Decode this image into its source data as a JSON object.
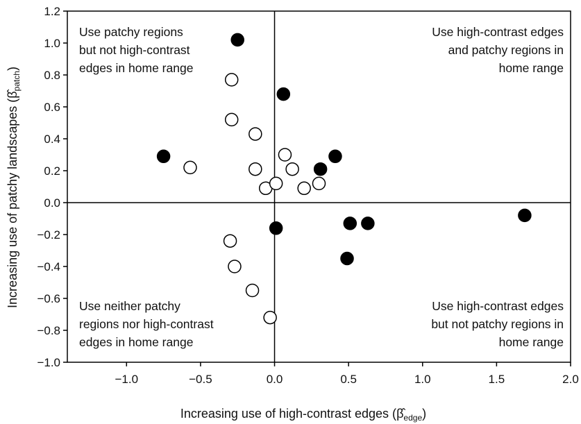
{
  "chart_data": {
    "type": "scatter",
    "xlabel": "Increasing use of high-contrast edges (β̂edge)",
    "xlabel_main": "Increasing use of high-contrast edges (",
    "xlabel_symbol": "β̂",
    "xlabel_sub": "edge",
    "xlabel_close": ")",
    "ylabel": "Increasing use of patchy landscapes (β̂patch)",
    "ylabel_main": "Increasing use of patchy landscapes (",
    "ylabel_symbol": "β̂",
    "ylabel_sub": "patch",
    "ylabel_close": ")",
    "xlim": [
      -1.4,
      2.0
    ],
    "ylim": [
      -1.0,
      1.2
    ],
    "xticks": [
      -1.0,
      -0.5,
      0.0,
      0.5,
      1.0,
      1.5,
      2.0
    ],
    "xtick_labels": [
      "−1.0",
      "−0.5",
      "0.0",
      "0.5",
      "1.0",
      "1.5",
      "2.0"
    ],
    "yticks": [
      -1.0,
      -0.8,
      -0.6,
      -0.4,
      -0.2,
      0.0,
      0.2,
      0.4,
      0.6,
      0.8,
      1.0,
      1.2
    ],
    "ytick_labels": [
      "−1.0",
      "−0.8",
      "−0.6",
      "−0.4",
      "−0.2",
      "0.0",
      "0.2",
      "0.4",
      "0.6",
      "0.8",
      "1.0",
      "1.2"
    ],
    "grid": false,
    "reference_lines": {
      "x": 0.0,
      "y": 0.0
    },
    "series": [
      {
        "marker": "filled-circle",
        "color": "#000000",
        "points": [
          {
            "x": -0.25,
            "y": 1.02
          },
          {
            "x": 0.06,
            "y": 0.68
          },
          {
            "x": -0.75,
            "y": 0.29
          },
          {
            "x": 0.31,
            "y": 0.21
          },
          {
            "x": 0.41,
            "y": 0.29
          },
          {
            "x": 1.69,
            "y": -0.08
          },
          {
            "x": 0.51,
            "y": -0.13
          },
          {
            "x": 0.63,
            "y": -0.13
          },
          {
            "x": 0.01,
            "y": -0.16
          },
          {
            "x": 0.49,
            "y": -0.35
          }
        ]
      },
      {
        "marker": "open-circle",
        "color": "#000000",
        "points": [
          {
            "x": -0.29,
            "y": 0.77
          },
          {
            "x": -0.29,
            "y": 0.52
          },
          {
            "x": -0.13,
            "y": 0.43
          },
          {
            "x": -0.57,
            "y": 0.22
          },
          {
            "x": -0.13,
            "y": 0.21
          },
          {
            "x": 0.07,
            "y": 0.3
          },
          {
            "x": 0.12,
            "y": 0.21
          },
          {
            "x": -0.06,
            "y": 0.09
          },
          {
            "x": 0.01,
            "y": 0.12
          },
          {
            "x": 0.2,
            "y": 0.09
          },
          {
            "x": 0.3,
            "y": 0.12
          },
          {
            "x": -0.3,
            "y": -0.24
          },
          {
            "x": -0.27,
            "y": -0.4
          },
          {
            "x": -0.15,
            "y": -0.55
          },
          {
            "x": -0.03,
            "y": -0.72
          }
        ]
      }
    ],
    "annotations": [
      {
        "position": "top-left",
        "lines": [
          "Use patchy regions",
          "but not high-contrast",
          "edges in home range"
        ]
      },
      {
        "position": "top-right",
        "lines": [
          "Use high-contrast edges",
          "and patchy regions in",
          "home range"
        ]
      },
      {
        "position": "bottom-left",
        "lines": [
          "Use neither patchy",
          "regions nor high-contrast",
          "edges in home range"
        ]
      },
      {
        "position": "bottom-right",
        "lines": [
          "Use high-contrast edges",
          "but not patchy regions in",
          "home range"
        ]
      }
    ]
  }
}
